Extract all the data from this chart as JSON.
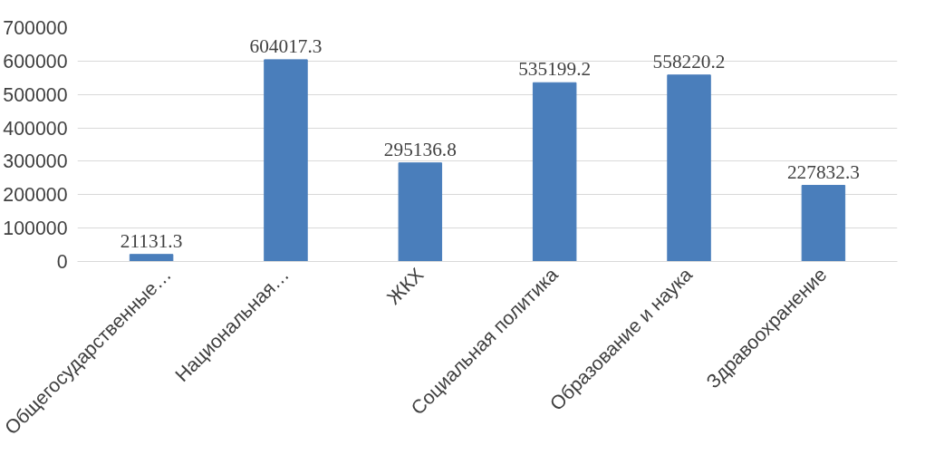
{
  "chart_data": {
    "type": "bar",
    "categories": [
      "Общегосударственные…",
      "Национальная…",
      "ЖКХ",
      "Социальная политика",
      "Образование и наука",
      "Здравоохранение"
    ],
    "values": [
      21131.3,
      604017.3,
      295136.8,
      535199.2,
      558220.2,
      227832.3
    ],
    "color": "#4a7ebb",
    "ylim": [
      0,
      700000
    ],
    "yticks": [
      0,
      100000,
      200000,
      300000,
      400000,
      500000,
      600000,
      700000
    ],
    "grid": "y",
    "data_labels": true
  }
}
